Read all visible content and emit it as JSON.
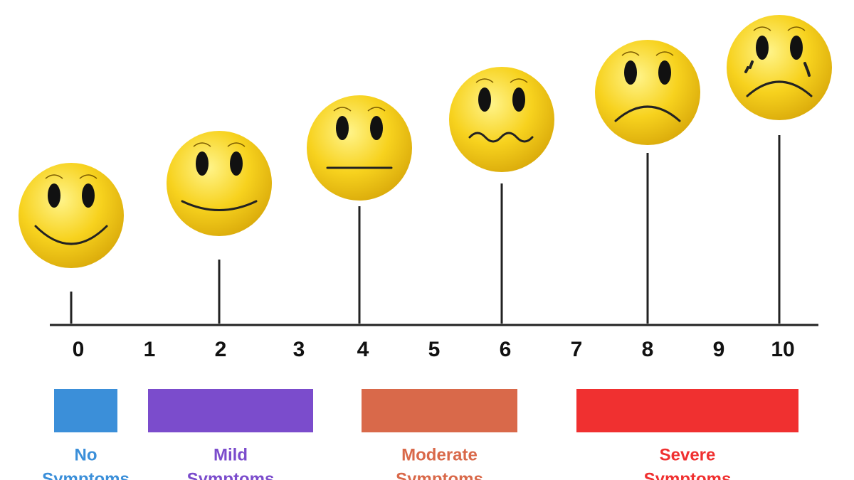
{
  "scale": {
    "ticks": [
      0,
      1,
      2,
      3,
      4,
      5,
      6,
      7,
      8,
      9,
      10
    ]
  },
  "ranges": [
    {
      "label_lines": [
        "No",
        "Symptoms"
      ]
    },
    {
      "label_lines": [
        "Mild",
        "Symptoms"
      ]
    },
    {
      "label_lines": [
        "Moderate",
        "Symptoms"
      ]
    },
    {
      "label_lines": [
        "Severe",
        "Symptoms"
      ]
    }
  ]
}
